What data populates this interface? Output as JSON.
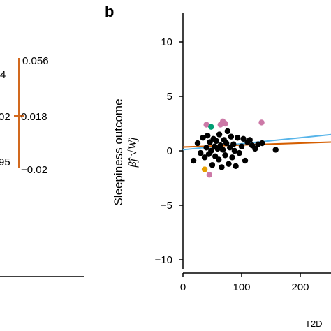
{
  "panel_a": {
    "left_labels": [
      "4",
      "02",
      "95"
    ],
    "right_labels": [
      "0.056",
      "0.018",
      "−0.02"
    ],
    "line_color": "#d2691e"
  },
  "panel_b": {
    "letter": "b",
    "xlabel_partial": "T2D",
    "ylabel_line1": "Sleepiness outcome",
    "ylabel_math": "β̂j √Wj"
  },
  "chart_data": {
    "type": "scatter",
    "xlim": [
      0,
      250
    ],
    "ylim": [
      -12,
      13
    ],
    "xticks": [
      0,
      100,
      200
    ],
    "yticks": [
      10,
      5,
      0,
      -5,
      -10
    ],
    "xtick_labels": [
      "0",
      "100",
      "200"
    ],
    "ytick_labels": [
      "10",
      "5",
      "0",
      "−5",
      "−10"
    ],
    "grid": false,
    "colors": {
      "black": "#000000",
      "pink": "#cc79a7",
      "green": "#009e73",
      "gold": "#e69f00",
      "orange_line": "#d55e00",
      "blue_line": "#56b4e9"
    },
    "points": [
      {
        "x": 18,
        "y": -0.9,
        "c": "black"
      },
      {
        "x": 25,
        "y": 0.7,
        "c": "black"
      },
      {
        "x": 30,
        "y": -0.2,
        "c": "black"
      },
      {
        "x": 34,
        "y": 1.2,
        "c": "black"
      },
      {
        "x": 37,
        "y": -0.6,
        "c": "black"
      },
      {
        "x": 40,
        "y": 0.3,
        "c": "black"
      },
      {
        "x": 42,
        "y": 1.4,
        "c": "black"
      },
      {
        "x": 44,
        "y": -0.3,
        "c": "black"
      },
      {
        "x": 46,
        "y": 0.8,
        "c": "black"
      },
      {
        "x": 48,
        "y": 0.0,
        "c": "black"
      },
      {
        "x": 50,
        "y": -1.3,
        "c": "black"
      },
      {
        "x": 52,
        "y": 1.1,
        "c": "black"
      },
      {
        "x": 54,
        "y": 0.4,
        "c": "black"
      },
      {
        "x": 55,
        "y": -0.5,
        "c": "black"
      },
      {
        "x": 57,
        "y": 0.9,
        "c": "black"
      },
      {
        "x": 59,
        "y": 0.2,
        "c": "black"
      },
      {
        "x": 61,
        "y": -0.8,
        "c": "black"
      },
      {
        "x": 62,
        "y": 1.5,
        "c": "black"
      },
      {
        "x": 64,
        "y": 0.5,
        "c": "black"
      },
      {
        "x": 66,
        "y": -1.5,
        "c": "black"
      },
      {
        "x": 68,
        "y": 0.1,
        "c": "black"
      },
      {
        "x": 70,
        "y": 1.0,
        "c": "black"
      },
      {
        "x": 72,
        "y": -0.4,
        "c": "black"
      },
      {
        "x": 74,
        "y": 0.7,
        "c": "black"
      },
      {
        "x": 76,
        "y": 1.8,
        "c": "black"
      },
      {
        "x": 78,
        "y": -1.2,
        "c": "black"
      },
      {
        "x": 80,
        "y": 0.3,
        "c": "black"
      },
      {
        "x": 82,
        "y": 1.3,
        "c": "black"
      },
      {
        "x": 84,
        "y": -0.6,
        "c": "black"
      },
      {
        "x": 86,
        "y": 0.6,
        "c": "black"
      },
      {
        "x": 88,
        "y": 0.0,
        "c": "black"
      },
      {
        "x": 90,
        "y": -1.4,
        "c": "black"
      },
      {
        "x": 93,
        "y": 1.2,
        "c": "black"
      },
      {
        "x": 96,
        "y": -0.2,
        "c": "black"
      },
      {
        "x": 100,
        "y": 0.4,
        "c": "black"
      },
      {
        "x": 103,
        "y": 1.1,
        "c": "black"
      },
      {
        "x": 106,
        "y": -0.9,
        "c": "black"
      },
      {
        "x": 110,
        "y": 0.8,
        "c": "black"
      },
      {
        "x": 114,
        "y": 1.0,
        "c": "black"
      },
      {
        "x": 118,
        "y": 0.5,
        "c": "black"
      },
      {
        "x": 123,
        "y": 0.2,
        "c": "black"
      },
      {
        "x": 128,
        "y": 0.6,
        "c": "black"
      },
      {
        "x": 135,
        "y": 0.7,
        "c": "black"
      },
      {
        "x": 158,
        "y": 0.1,
        "c": "black"
      },
      {
        "x": 40,
        "y": 2.4,
        "c": "pink"
      },
      {
        "x": 45,
        "y": -2.2,
        "c": "pink"
      },
      {
        "x": 68,
        "y": 2.7,
        "c": "pink"
      },
      {
        "x": 72,
        "y": 2.5,
        "c": "pink"
      },
      {
        "x": 64,
        "y": 2.4,
        "c": "pink"
      },
      {
        "x": 134,
        "y": 2.6,
        "c": "pink"
      },
      {
        "x": 48,
        "y": 2.2,
        "c": "green"
      },
      {
        "x": 37,
        "y": -1.7,
        "c": "gold"
      }
    ],
    "lines": [
      {
        "color": "blue_line",
        "y_at_0": 0.1,
        "slope": 0.0055
      },
      {
        "color": "orange_line",
        "y_at_0": 0.35,
        "slope": 0.0018
      }
    ]
  }
}
